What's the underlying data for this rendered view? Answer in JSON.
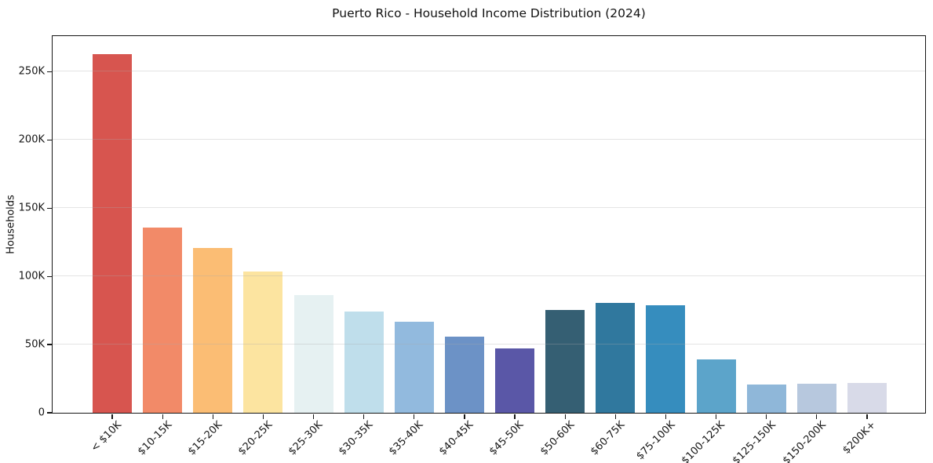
{
  "chart_data": {
    "type": "bar",
    "title": "Puerto Rico - Household Income Distribution (2024)",
    "xlabel": "",
    "ylabel": "Households",
    "categories": [
      "< $10K",
      "$10-15K",
      "$15-20K",
      "$20-25K",
      "$25-30K",
      "$30-35K",
      "$35-40K",
      "$40-45K",
      "$45-50K",
      "$50-60K",
      "$60-75K",
      "$75-100K",
      "$100-125K",
      "$125-150K",
      "$150-200K",
      "$200K+"
    ],
    "values": [
      263000,
      135500,
      120500,
      103500,
      86000,
      74000,
      66500,
      56000,
      47000,
      75500,
      80500,
      79000,
      39000,
      20500,
      21500,
      22000
    ],
    "bar_colors": [
      "#d7554f",
      "#f28a68",
      "#fbbd74",
      "#fce4a0",
      "#e6f1f2",
      "#bfdeeb",
      "#92bade",
      "#6c92c6",
      "#5a57a7",
      "#355f73",
      "#30789e",
      "#368dbe",
      "#5ca4ca",
      "#8fb7d9",
      "#b7c8de",
      "#d8dae8"
    ],
    "yticks": [
      0,
      50000,
      100000,
      150000,
      200000,
      250000
    ],
    "ytick_labels": [
      "0",
      "50K",
      "100K",
      "150K",
      "200K",
      "250K"
    ],
    "ylim": [
      0,
      276000
    ],
    "grid": "horizontal",
    "grid_above_bars": true,
    "legend": "none",
    "background_color": "#ffffff",
    "spine_color": "#161616",
    "text_color": "#161616"
  }
}
